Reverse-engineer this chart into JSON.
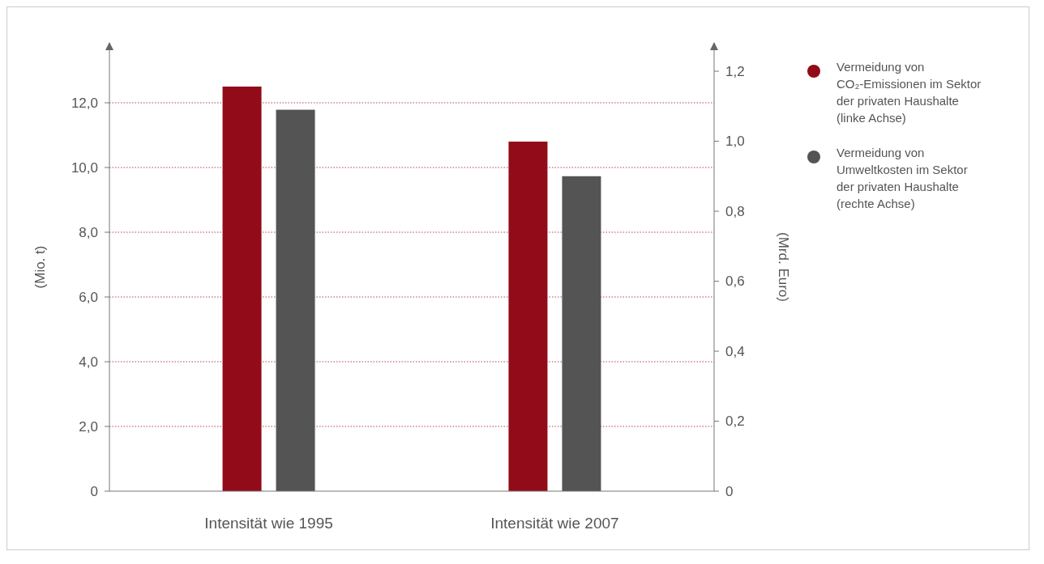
{
  "chart_data": {
    "type": "bar",
    "categories": [
      "Intensität wie 1995",
      "Intensität wie 2007"
    ],
    "ylabel": "(Mio. t)",
    "y2label": "(Mrd. Euro)",
    "series": [
      {
        "name": "Vermeidung von CO₂-Emissionen im Sektor der privaten Haushalte (linke Achse)",
        "color": "#910c18",
        "values": [
          12.5,
          10.8
        ]
      },
      {
        "name": "Vermeidung von Umweltkosten im Sektor der privaten Haushalte (rechte Achse)",
        "color": "#545454",
        "values": [
          1.09,
          0.9
        ],
        "axis": "y2"
      }
    ],
    "ylim": [
      0,
      13.85
    ],
    "yticks": [
      {
        "value": 0,
        "label": "0"
      },
      {
        "value": 2,
        "label": "2,0"
      },
      {
        "value": 4,
        "label": "4,0"
      },
      {
        "value": 6,
        "label": "6,0"
      },
      {
        "value": 8,
        "label": "8,0"
      },
      {
        "value": 10,
        "label": "10,0"
      },
      {
        "value": 12,
        "label": "12,0"
      }
    ],
    "y2lim": [
      0,
      1.281
    ],
    "y2ticks": [
      {
        "value": 0,
        "label": "0"
      },
      {
        "value": 0.2,
        "label": "0,2"
      },
      {
        "value": 0.4,
        "label": "0,4"
      },
      {
        "value": 0.6,
        "label": "0,6"
      },
      {
        "value": 0.8,
        "label": "0,8"
      },
      {
        "value": 1.0,
        "label": "1,0"
      },
      {
        "value": 1.2,
        "label": "1,2"
      }
    ],
    "grid": "y",
    "legend": "right"
  }
}
